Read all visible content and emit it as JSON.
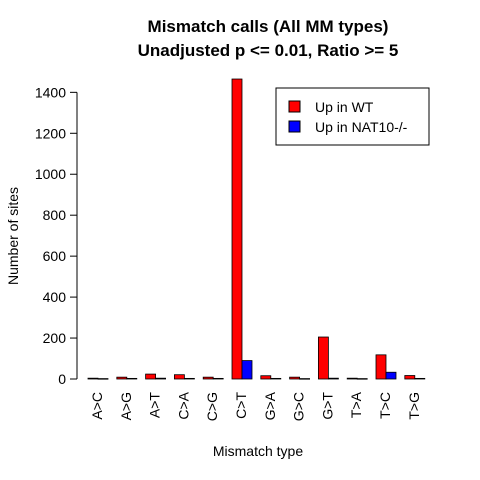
{
  "chart_data": {
    "type": "bar",
    "title_lines": [
      "Mismatch calls (All MM types)",
      "Unadjusted p <= 0.01, Ratio >= 5"
    ],
    "xlabel": "Mismatch type",
    "ylabel": "Number of sites",
    "categories": [
      "A>C",
      "A>G",
      "A>T",
      "C>A",
      "C>G",
      "C>T",
      "G>A",
      "G>C",
      "G>T",
      "T>A",
      "T>C",
      "T>G"
    ],
    "series": [
      {
        "name": "Up in WT",
        "color": "#ff0000",
        "values": [
          4,
          9,
          24,
          21,
          9,
          1465,
          16,
          9,
          205,
          4,
          118,
          17
        ]
      },
      {
        "name": "Up in NAT10-/-",
        "color": "#0000ff",
        "values": [
          2,
          3,
          4,
          3,
          3,
          90,
          3,
          2,
          4,
          2,
          33,
          3
        ]
      }
    ],
    "yticks": [
      0,
      200,
      400,
      600,
      800,
      1000,
      1200,
      1400
    ],
    "ylim": [
      0,
      1470
    ],
    "legend_position": "top-right"
  }
}
